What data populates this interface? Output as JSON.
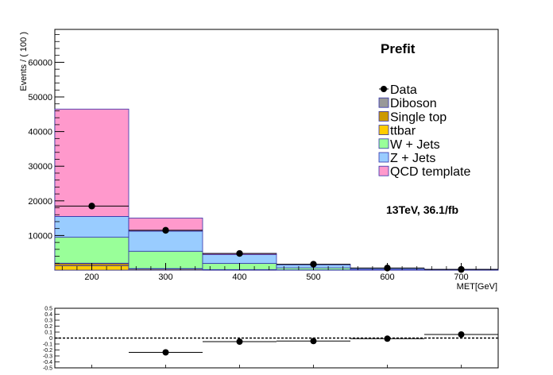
{
  "chart_data": [
    {
      "type": "bar",
      "stacked": true,
      "title": "Prefit",
      "subtitle": "13TeV, 36.1/fb",
      "xlabel": "MET[GeV]",
      "ylabel": "Events / ( 100 )",
      "xlim": [
        150,
        750
      ],
      "ylim": [
        0,
        69500
      ],
      "x_ticks": [
        200,
        300,
        400,
        500,
        600,
        700
      ],
      "y_ticks": [
        10000,
        20000,
        30000,
        40000,
        50000,
        60000
      ],
      "bin_edges": [
        150,
        250,
        350,
        450,
        550,
        650,
        750
      ],
      "legend_placement": "right",
      "legend": [
        "Data",
        "Diboson",
        "Single top",
        "ttbar",
        "W + Jets",
        "Z + Jets",
        "QCD template"
      ],
      "series": [
        {
          "name": "ttbar",
          "color": "#ffcc00",
          "values": [
            1300,
            300,
            100,
            40,
            10,
            5
          ]
        },
        {
          "name": "Single top",
          "color": "#cc9900",
          "values": [
            600,
            100,
            30,
            10,
            5,
            2
          ]
        },
        {
          "name": "Diboson",
          "color": "#999999",
          "values": [
            100,
            50,
            20,
            10,
            5,
            2
          ]
        },
        {
          "name": "W + Jets",
          "color": "#99ff99",
          "values": [
            7500,
            5000,
            1800,
            600,
            200,
            80
          ]
        },
        {
          "name": "Z + Jets",
          "color": "#99ccff",
          "values": [
            6000,
            5800,
            2500,
            900,
            350,
            130
          ]
        },
        {
          "name": "QCD template",
          "color": "#ff99cc",
          "values": [
            31000,
            3800,
            400,
            80,
            20,
            5
          ]
        }
      ],
      "data_points": {
        "name": "Data",
        "x": [
          200,
          300,
          400,
          500,
          600,
          700
        ],
        "values": [
          18500,
          11500,
          4800,
          1700,
          600,
          200
        ]
      }
    },
    {
      "type": "scatter",
      "xlim": [
        150,
        750
      ],
      "ylim": [
        -0.5,
        0.5
      ],
      "y_ticks": [
        -0.5,
        -0.4,
        -0.3,
        -0.2,
        -0.1,
        0,
        0.1,
        0.2,
        0.3,
        0.4,
        0.5
      ],
      "y_tick_labels": [
        "-0.5",
        "-0.4",
        "-0.3",
        "-0.2",
        "-0.1",
        "0",
        "0.1",
        "0.2",
        "0.3",
        "0.4",
        "0.5"
      ],
      "x_ticks": [
        200,
        300,
        400,
        500,
        600,
        700
      ],
      "reference_line": 0,
      "points": {
        "x": [
          300,
          400,
          500,
          600,
          700
        ],
        "y": [
          -0.24,
          -0.06,
          -0.05,
          -0.01,
          0.06
        ]
      }
    }
  ]
}
